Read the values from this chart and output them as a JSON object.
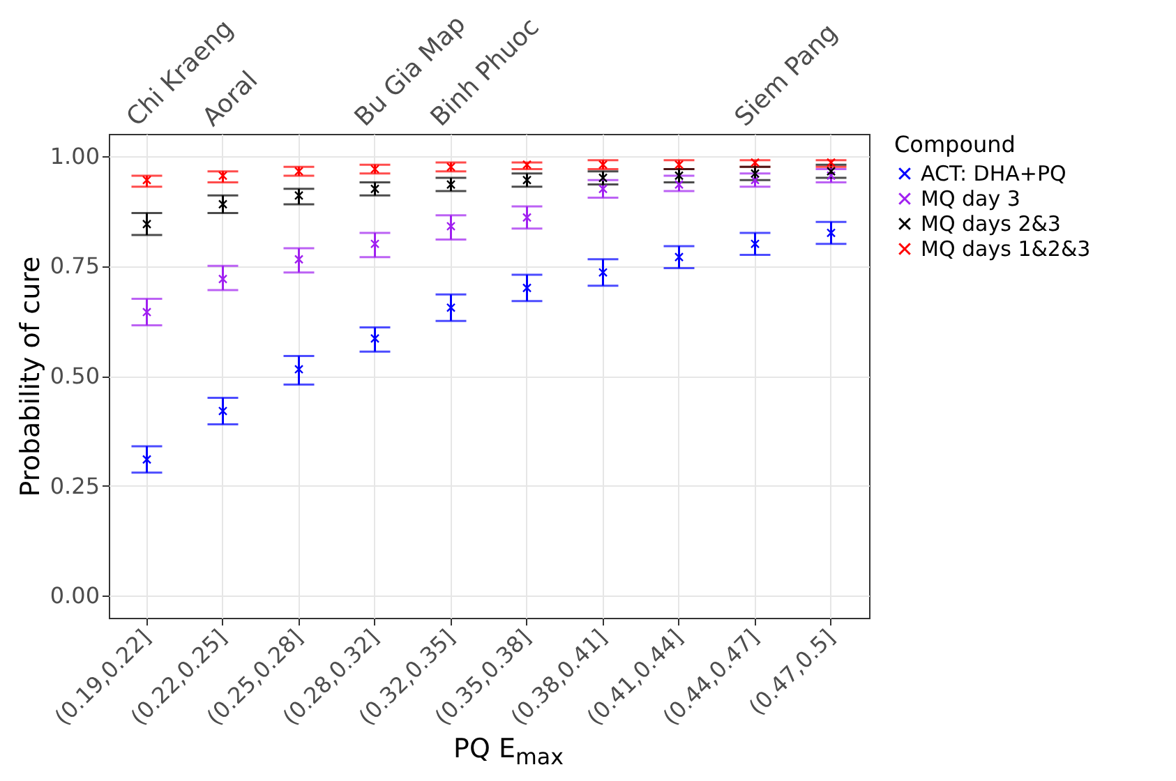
{
  "chart_data": {
    "type": "scatter",
    "xlabel": "PQ E$_{max}$",
    "ylabel": "Probability of cure",
    "legend_title": "Compound",
    "categories": [
      "(0.19,0.22]",
      "(0.22,0.25]",
      "(0.25,0.28]",
      "(0.28,0.32]",
      "(0.32,0.35]",
      "(0.35,0.38]",
      "(0.38,0.41]",
      "(0.41,0.44]",
      "(0.44,0.47]",
      "(0.47,0.5]"
    ],
    "series": [
      {
        "name": "ACT: DHA+PQ",
        "color": "#0000ff",
        "values": [
          0.31,
          0.42,
          0.515,
          0.585,
          0.655,
          0.7,
          0.735,
          0.77,
          0.8,
          0.825
        ],
        "errors": [
          [
            0.28,
            0.34
          ],
          [
            0.39,
            0.45
          ],
          [
            0.48,
            0.545
          ],
          [
            0.555,
            0.61
          ],
          [
            0.625,
            0.685
          ],
          [
            0.67,
            0.73
          ],
          [
            0.705,
            0.765
          ],
          [
            0.745,
            0.795
          ],
          [
            0.775,
            0.825
          ],
          [
            0.8,
            0.85
          ]
        ]
      },
      {
        "name": "MQ day 3",
        "color": "#a020f0",
        "values": [
          0.645,
          0.72,
          0.765,
          0.8,
          0.84,
          0.86,
          0.925,
          0.935,
          0.945,
          0.955
        ],
        "errors": [
          [
            0.615,
            0.675
          ],
          [
            0.695,
            0.75
          ],
          [
            0.735,
            0.79
          ],
          [
            0.77,
            0.825
          ],
          [
            0.81,
            0.865
          ],
          [
            0.835,
            0.885
          ],
          [
            0.905,
            0.945
          ],
          [
            0.92,
            0.955
          ],
          [
            0.93,
            0.96
          ],
          [
            0.94,
            0.97
          ]
        ]
      },
      {
        "name": "MQ days 2&3",
        "color": "#000000",
        "values": [
          0.845,
          0.89,
          0.91,
          0.925,
          0.935,
          0.945,
          0.95,
          0.955,
          0.96,
          0.965
        ],
        "errors": [
          [
            0.82,
            0.87
          ],
          [
            0.87,
            0.91
          ],
          [
            0.89,
            0.925
          ],
          [
            0.91,
            0.94
          ],
          [
            0.92,
            0.95
          ],
          [
            0.93,
            0.96
          ],
          [
            0.935,
            0.965
          ],
          [
            0.94,
            0.97
          ],
          [
            0.945,
            0.975
          ],
          [
            0.95,
            0.98
          ]
        ]
      },
      {
        "name": "MQ days 1&2&3",
        "color": "#ff0000",
        "values": [
          0.945,
          0.955,
          0.965,
          0.97,
          0.975,
          0.98,
          0.98,
          0.98,
          0.985,
          0.985
        ],
        "errors": [
          [
            0.93,
            0.955
          ],
          [
            0.94,
            0.965
          ],
          [
            0.955,
            0.975
          ],
          [
            0.96,
            0.98
          ],
          [
            0.965,
            0.985
          ],
          [
            0.97,
            0.985
          ],
          [
            0.97,
            0.99
          ],
          [
            0.97,
            0.99
          ],
          [
            0.975,
            0.99
          ],
          [
            0.975,
            0.99
          ]
        ]
      }
    ],
    "ylim": [
      -0.05,
      1.05
    ],
    "yticks": [
      {
        "value": 0,
        "label": "0.00"
      },
      {
        "value": 0.25,
        "label": "0.25"
      },
      {
        "value": 0.5,
        "label": "0.50"
      },
      {
        "value": 0.75,
        "label": "0.75"
      },
      {
        "value": 1,
        "label": "1.00"
      }
    ],
    "annotations": [
      "Chi Kraeng",
      "Aoral",
      "Bu Gia Map",
      "Binh Phuoc",
      "Siem Pang"
    ],
    "grid": true,
    "legend": "right",
    "marker": "cross"
  }
}
